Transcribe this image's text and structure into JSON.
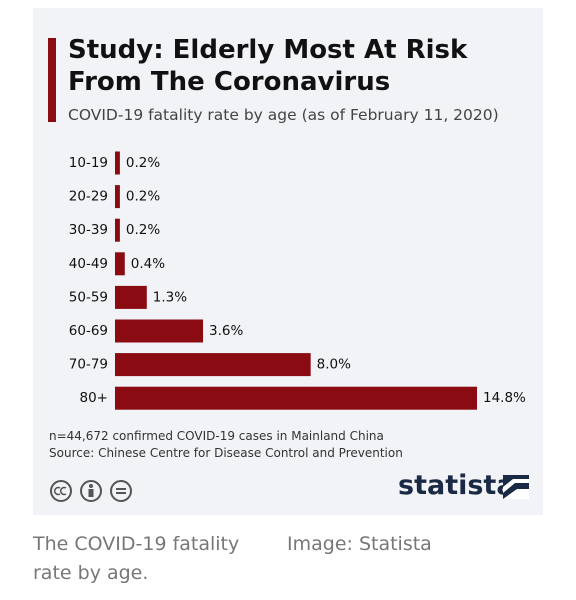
{
  "chart_data": {
    "type": "bar",
    "orientation": "horizontal",
    "title": "Study: Elderly Most At Risk From The Coronavirus",
    "subtitle": "COVID-19 fatality rate by age (as of February 11, 2020)",
    "categories": [
      "10-19",
      "20-29",
      "30-39",
      "40-49",
      "50-59",
      "60-69",
      "70-79",
      "80+"
    ],
    "values": [
      0.2,
      0.2,
      0.2,
      0.4,
      1.3,
      3.6,
      8.0,
      14.8
    ],
    "value_labels": [
      "0.2%",
      "0.2%",
      "0.2%",
      "0.4%",
      "1.3%",
      "3.6%",
      "8.0%",
      "14.8%"
    ],
    "color": "#8a0c12",
    "notes": [
      "n=44,672 confirmed COVID-19 cases in Mainland China",
      "Source: Chinese Centre for Disease Control and Prevention"
    ],
    "brand": "statista"
  },
  "caption": "The COVID-19 fatality rate by age.",
  "credit": "Image: Statista"
}
